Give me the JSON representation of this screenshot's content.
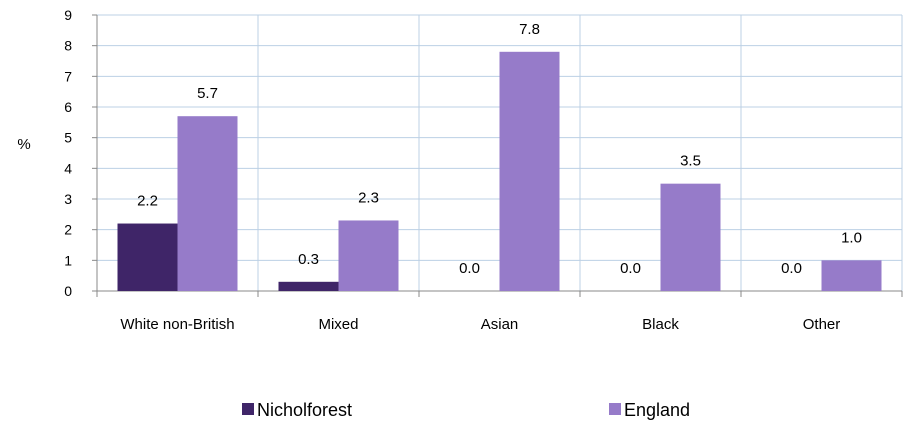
{
  "chart_data": {
    "type": "bar",
    "title": "",
    "xlabel": "",
    "ylabel": "%",
    "ylim": [
      0,
      9
    ],
    "yticks": [
      0,
      1,
      2,
      3,
      4,
      5,
      6,
      7,
      8,
      9
    ],
    "grid": true,
    "legend_position": "bottom",
    "categories": [
      "White non-British",
      "Mixed",
      "Asian",
      "Black",
      "Other"
    ],
    "series": [
      {
        "name": "Nicholforest",
        "color": "#3f2568",
        "values": [
          2.2,
          0.3,
          0.0,
          0.0,
          0.0
        ],
        "labels": [
          "2.2",
          "0.3",
          "0.0",
          "0.0",
          "0.0"
        ]
      },
      {
        "name": "England",
        "color": "#967bc9",
        "values": [
          5.7,
          2.3,
          7.8,
          3.5,
          1.0
        ],
        "labels": [
          "5.7",
          "2.3",
          "7.8",
          "3.5",
          "1.0"
        ]
      }
    ]
  }
}
